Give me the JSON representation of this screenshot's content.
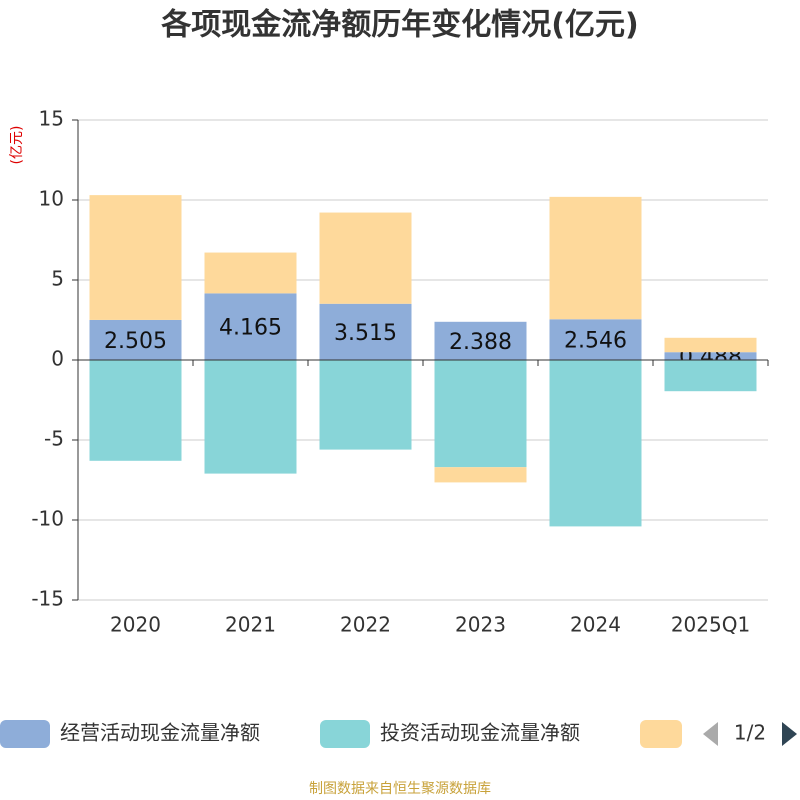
{
  "chart_data": {
    "type": "bar",
    "stacked": true,
    "title": "各项现金流净额历年变化情况(亿元)",
    "y_label": "(亿元)",
    "categories": [
      "2020",
      "2021",
      "2022",
      "2023",
      "2024",
      "2025Q1"
    ],
    "series": [
      {
        "name": "经营活动现金流量净额",
        "color": "#8eadd9",
        "values": [
          2.505,
          4.165,
          3.515,
          2.388,
          2.546,
          0.488
        ],
        "show_labels": true
      },
      {
        "name": "投资活动现金流量净额",
        "color": "#88d5d8",
        "values": [
          -6.3,
          -7.1,
          -5.6,
          -6.7,
          -10.4,
          -1.95
        ]
      },
      {
        "color": "#fed99b",
        "values": [
          7.8,
          2.55,
          5.7,
          -0.95,
          7.65,
          0.9
        ]
      }
    ],
    "ylim": [
      -15,
      15
    ],
    "yticks": [
      -15,
      -10,
      -5,
      0,
      5,
      10,
      15
    ],
    "grid": true,
    "legend_page": "1/2",
    "source": "制图数据来自恒生聚源数据库"
  }
}
